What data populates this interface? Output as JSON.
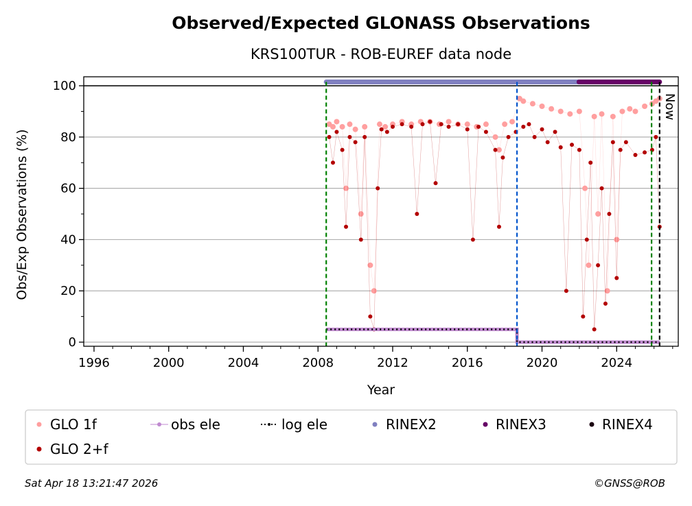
{
  "chart_data": {
    "type": "scatter",
    "title": "Observed/Expected GLONASS Observations",
    "subtitle": "KRS100TUR - ROB-EUREF data node",
    "xlabel": "Year",
    "ylabel": "Obs/Exp Observations (%)",
    "xlim": [
      1995.45,
      2027.3
    ],
    "ylim": [
      -1.6,
      103.5
    ],
    "xticks": [
      1996,
      2000,
      2004,
      2008,
      2012,
      2016,
      2020,
      2024
    ],
    "yticks": [
      0,
      20,
      40,
      60,
      80,
      100
    ],
    "grid": "horizontal",
    "legend_placement": "bottom",
    "now_label": "Now",
    "vlines": [
      {
        "name": "green-start-line",
        "x": 2008.44,
        "color": "#008000"
      },
      {
        "name": "blue-change-line",
        "x": 2018.66,
        "color": "#0055cc"
      },
      {
        "name": "green-end-line",
        "x": 2025.87,
        "color": "#008000"
      },
      {
        "name": "now-line",
        "x": 2026.3,
        "color": "#000000"
      }
    ],
    "series": [
      {
        "name": "GLO 1f",
        "color": "#ff9f9f",
        "kind": "points",
        "x": [
          2008.6,
          2008.8,
          2009.0,
          2009.3,
          2009.5,
          2009.7,
          2010.0,
          2010.3,
          2010.5,
          2010.8,
          2011.0,
          2011.3,
          2011.6,
          2012.0,
          2012.5,
          2013.0,
          2013.5,
          2014.0,
          2014.5,
          2015.0,
          2015.5,
          2016.0,
          2016.5,
          2017.0,
          2017.5,
          2017.7,
          2018.0,
          2018.4,
          2018.8,
          2019.0,
          2019.5,
          2020.0,
          2020.5,
          2021.0,
          2021.5,
          2022.0,
          2022.3,
          2022.5,
          2022.8,
          2023.0,
          2023.2,
          2023.5,
          2023.8,
          2024.0,
          2024.3,
          2024.7,
          2025.0,
          2025.5,
          2025.9,
          2026.1,
          2026.3
        ],
        "y": [
          85,
          84,
          86,
          84,
          60,
          85,
          83,
          50,
          84,
          30,
          20,
          85,
          84,
          85,
          86,
          85,
          86,
          86,
          85,
          86,
          85,
          85,
          84,
          85,
          80,
          75,
          85,
          86,
          95,
          94,
          93,
          92,
          91,
          90,
          89,
          90,
          60,
          30,
          88,
          50,
          89,
          20,
          88,
          40,
          90,
          91,
          90,
          92,
          93,
          94,
          95
        ]
      },
      {
        "name": "GLO 2+f",
        "color": "#b30000",
        "kind": "points",
        "x": [
          2008.6,
          2008.8,
          2009.0,
          2009.3,
          2009.5,
          2009.7,
          2010.0,
          2010.3,
          2010.5,
          2010.8,
          2011.0,
          2011.2,
          2011.4,
          2011.7,
          2012.0,
          2012.5,
          2013.0,
          2013.3,
          2013.6,
          2014.0,
          2014.3,
          2014.6,
          2015.0,
          2015.5,
          2016.0,
          2016.3,
          2016.6,
          2017.0,
          2017.5,
          2017.7,
          2017.9,
          2018.2,
          2018.6,
          2019.0,
          2019.3,
          2019.6,
          2020.0,
          2020.3,
          2020.7,
          2021.0,
          2021.3,
          2021.6,
          2022.0,
          2022.2,
          2022.4,
          2022.6,
          2022.8,
          2023.0,
          2023.2,
          2023.4,
          2023.6,
          2023.8,
          2024.0,
          2024.2,
          2024.5,
          2025.0,
          2025.5,
          2025.9,
          2026.1,
          2026.3
        ],
        "y": [
          80,
          70,
          82,
          75,
          45,
          80,
          78,
          40,
          80,
          10,
          5,
          60,
          83,
          82,
          84,
          85,
          84,
          50,
          85,
          86,
          62,
          85,
          84,
          85,
          83,
          40,
          84,
          82,
          75,
          45,
          72,
          80,
          82,
          84,
          85,
          80,
          83,
          78,
          82,
          76,
          20,
          77,
          75,
          10,
          40,
          70,
          5,
          30,
          60,
          15,
          50,
          78,
          25,
          75,
          78,
          73,
          74,
          75,
          80,
          45
        ]
      },
      {
        "name": "obs ele",
        "color": "#c08ad0",
        "kind": "step",
        "x": [
          2008.44,
          2018.66,
          2018.66,
          2026.3
        ],
        "y": [
          5,
          5,
          0,
          0
        ]
      },
      {
        "name": "log ele",
        "color": "#000000",
        "kind": "step",
        "x": [
          2008.44,
          2018.66,
          2018.66,
          2026.3
        ],
        "y": [
          5,
          5,
          0,
          0
        ]
      },
      {
        "name": "RINEX2",
        "color": "#8080c0",
        "kind": "band",
        "x": [
          2008.44,
          2021.98
        ],
        "y": 101.5
      },
      {
        "name": "RINEX3",
        "color": "#660066",
        "kind": "band",
        "x": [
          2021.98,
          2026.3
        ],
        "y": 101.5
      },
      {
        "name": "RINEX4",
        "color": "#1a0010",
        "kind": "band",
        "x": [],
        "y": 101.5
      }
    ]
  },
  "legend": {
    "items": [
      "GLO 1f",
      "obs ele",
      "log ele",
      "RINEX2",
      "RINEX3",
      "RINEX4",
      "GLO 2+f"
    ]
  },
  "footer": {
    "timestamp": "Sat Apr 18 13:21:47 2026",
    "copyright": "©GNSS@ROB"
  }
}
